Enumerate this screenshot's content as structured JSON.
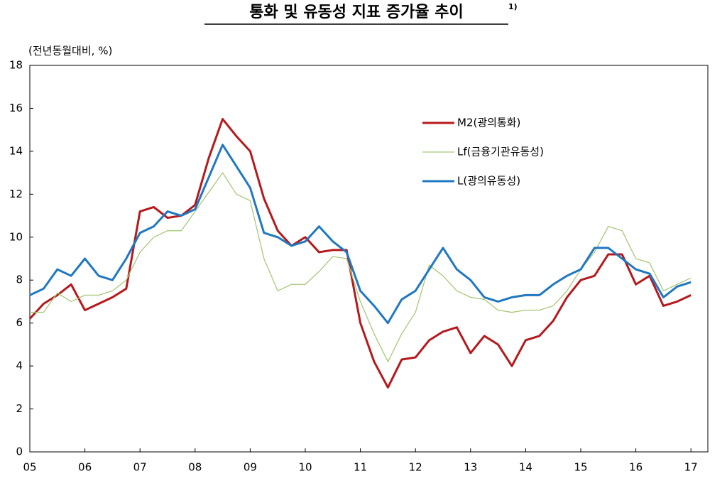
{
  "chart_data": {
    "type": "line",
    "title": "통화 및 유동성 지표 증가율 추이",
    "title_note": "1)",
    "y_label": "(전년동월대비, %)",
    "categories": [
      "05",
      null,
      null,
      null,
      "06",
      null,
      null,
      null,
      "07",
      null,
      null,
      null,
      "08",
      null,
      null,
      null,
      "09",
      null,
      null,
      null,
      "10",
      null,
      null,
      null,
      "11",
      null,
      null,
      null,
      "12",
      null,
      null,
      null,
      "13",
      null,
      null,
      null,
      "14",
      null,
      null,
      null,
      "15",
      null,
      null,
      null,
      "16",
      null,
      null,
      null,
      "17"
    ],
    "series": [
      {
        "name": "M2(광의통화)",
        "color": "#b5191c",
        "width": 3,
        "values": [
          6.2,
          6.9,
          7.3,
          7.8,
          6.6,
          6.9,
          7.2,
          7.6,
          11.2,
          11.4,
          10.9,
          11.0,
          11.5,
          13.7,
          15.5,
          14.7,
          14.0,
          11.8,
          10.3,
          9.6,
          10.0,
          9.3,
          9.4,
          9.4,
          6.0,
          4.2,
          3.0,
          4.3,
          4.4,
          5.2,
          5.6,
          5.8,
          4.6,
          5.4,
          5.0,
          4.0,
          5.2,
          5.4,
          6.1,
          7.2,
          8.0,
          8.2,
          9.2,
          9.2,
          7.8,
          8.2,
          6.8,
          7.0,
          7.3
        ]
      },
      {
        "name": "Lf(금융기관유동성)",
        "color": "#a8c878",
        "width": 1.3,
        "values": [
          6.5,
          6.5,
          7.4,
          7.0,
          7.3,
          7.3,
          7.5,
          8.0,
          9.3,
          10.0,
          10.3,
          10.3,
          11.2,
          12.1,
          13.0,
          12.0,
          11.7,
          9.0,
          7.5,
          7.8,
          7.8,
          8.4,
          9.1,
          9.0,
          7.0,
          5.5,
          4.2,
          5.5,
          6.5,
          8.7,
          8.2,
          7.5,
          7.2,
          7.1,
          6.6,
          6.5,
          6.6,
          6.6,
          6.8,
          7.5,
          8.5,
          9.3,
          10.5,
          10.3,
          9.0,
          8.8,
          7.5,
          7.8,
          8.1
        ]
      },
      {
        "name": "L(광의유동성)",
        "color": "#1f78c1",
        "width": 3,
        "values": [
          7.3,
          7.6,
          8.5,
          8.2,
          9.0,
          8.2,
          8.0,
          9.0,
          10.2,
          10.5,
          11.2,
          11.0,
          11.3,
          12.8,
          14.3,
          13.3,
          12.3,
          10.2,
          10.0,
          9.6,
          9.8,
          10.5,
          9.8,
          9.3,
          7.5,
          6.8,
          6.0,
          7.1,
          7.5,
          8.5,
          9.5,
          8.5,
          8.0,
          7.2,
          7.0,
          7.2,
          7.3,
          7.3,
          7.8,
          8.2,
          8.5,
          9.5,
          9.5,
          9.0,
          8.5,
          8.3,
          7.2,
          7.7,
          7.9
        ]
      }
    ],
    "ylim": [
      0,
      18
    ],
    "yticks": [
      0,
      2,
      4,
      6,
      8,
      10,
      12,
      14,
      16,
      18
    ],
    "grid": false
  }
}
